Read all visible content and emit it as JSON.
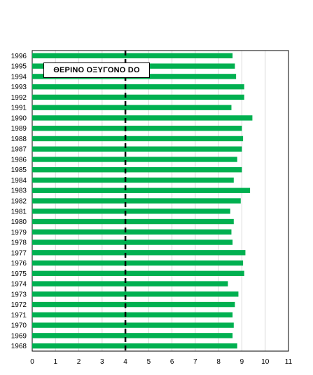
{
  "chart_data": {
    "type": "bar",
    "orientation": "horizontal",
    "title": "ΘΕΡΙΝΟ ΟΞΥΓΟΝΟ DO",
    "categories": [
      "1996",
      "1995",
      "1994",
      "1993",
      "1992",
      "1991",
      "1990",
      "1989",
      "1988",
      "1987",
      "1986",
      "1985",
      "1984",
      "1983",
      "1982",
      "1981",
      "1980",
      "1979",
      "1978",
      "1977",
      "1976",
      "1975",
      "1974",
      "1973",
      "1972",
      "1971",
      "1970",
      "1969",
      "1968"
    ],
    "values": [
      8.6,
      8.7,
      8.75,
      9.1,
      9.1,
      8.55,
      9.45,
      9.0,
      9.05,
      9.0,
      8.8,
      9.0,
      8.65,
      9.35,
      8.95,
      8.5,
      8.65,
      8.55,
      8.6,
      9.15,
      9.05,
      9.1,
      8.4,
      8.85,
      8.7,
      8.6,
      8.65,
      8.6,
      8.8
    ],
    "xlim": [
      0,
      11
    ],
    "xticks": [
      "0",
      "1",
      "2",
      "3",
      "4",
      "5",
      "6",
      "7",
      "8",
      "9",
      "10",
      "11"
    ],
    "reference_line": {
      "x": 4,
      "style": "dashed",
      "color": "#000000"
    },
    "bar_color": "#00b050",
    "grid": true,
    "legend": "none"
  }
}
